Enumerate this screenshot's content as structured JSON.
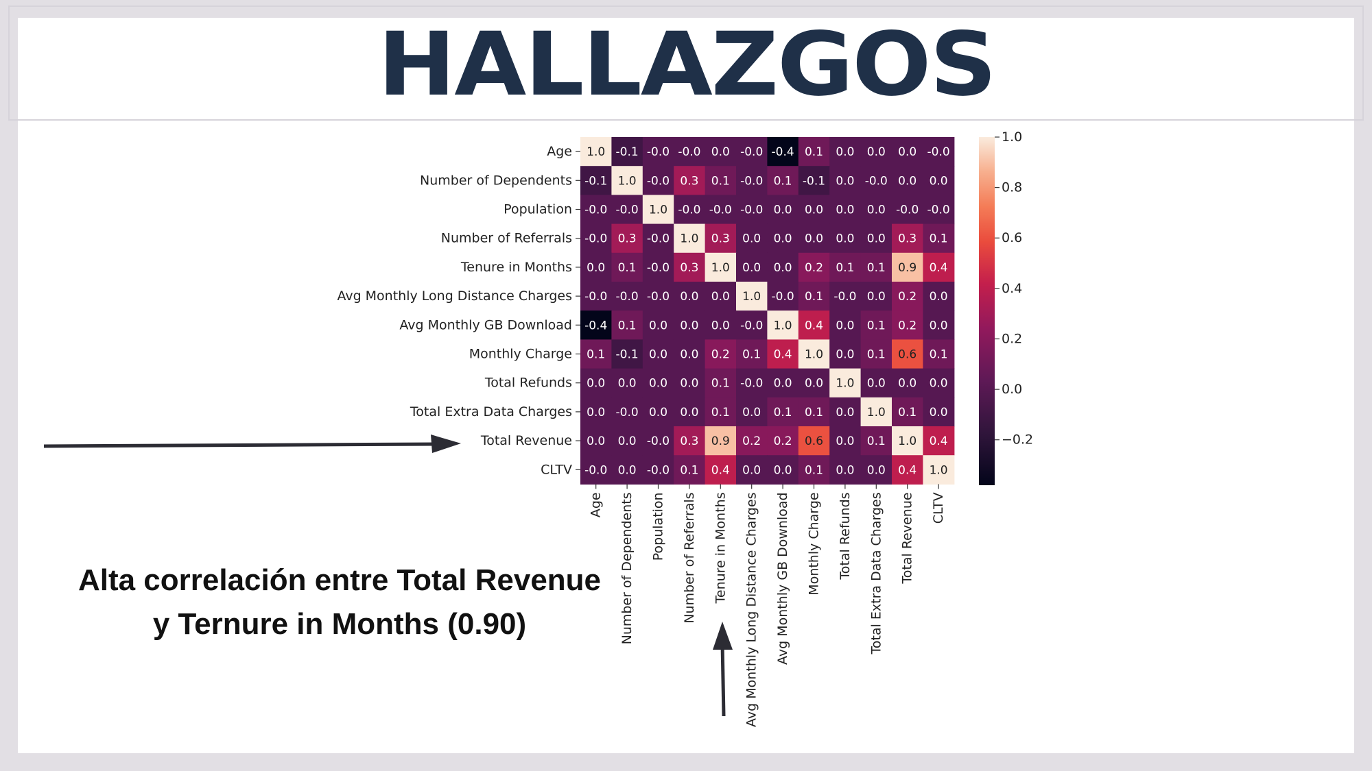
{
  "slide": {
    "title": "HALLAZGOS",
    "caption_line1": "Alta correlación entre Total Revenue",
    "caption_line2": "y Ternure in Months (0.90)"
  },
  "chart_data": {
    "type": "heatmap",
    "title": "",
    "labels": [
      "Age",
      "Number of Dependents",
      "Population",
      "Number of Referrals",
      "Tenure in Months",
      "Avg Monthly Long Distance Charges",
      "Avg Monthly GB Download",
      "Monthly Charge",
      "Total Refunds",
      "Total Extra Data Charges",
      "Total Revenue",
      "CLTV"
    ],
    "matrix_display": [
      [
        "1.0",
        "-0.1",
        "-0.0",
        "-0.0",
        "0.0",
        "-0.0",
        "-0.4",
        "0.1",
        "0.0",
        "0.0",
        "0.0",
        "-0.0"
      ],
      [
        "-0.1",
        "1.0",
        "-0.0",
        "0.3",
        "0.1",
        "-0.0",
        "0.1",
        "-0.1",
        "0.0",
        "-0.0",
        "0.0",
        "0.0"
      ],
      [
        "-0.0",
        "-0.0",
        "1.0",
        "-0.0",
        "-0.0",
        "-0.0",
        "0.0",
        "0.0",
        "0.0",
        "0.0",
        "-0.0",
        "-0.0"
      ],
      [
        "-0.0",
        "0.3",
        "-0.0",
        "1.0",
        "0.3",
        "0.0",
        "0.0",
        "0.0",
        "0.0",
        "0.0",
        "0.3",
        "0.1"
      ],
      [
        "0.0",
        "0.1",
        "-0.0",
        "0.3",
        "1.0",
        "0.0",
        "0.0",
        "0.2",
        "0.1",
        "0.1",
        "0.9",
        "0.4"
      ],
      [
        "-0.0",
        "-0.0",
        "-0.0",
        "0.0",
        "0.0",
        "1.0",
        "-0.0",
        "0.1",
        "-0.0",
        "0.0",
        "0.2",
        "0.0"
      ],
      [
        "-0.4",
        "0.1",
        "0.0",
        "0.0",
        "0.0",
        "-0.0",
        "1.0",
        "0.4",
        "0.0",
        "0.1",
        "0.2",
        "0.0"
      ],
      [
        "0.1",
        "-0.1",
        "0.0",
        "0.0",
        "0.2",
        "0.1",
        "0.4",
        "1.0",
        "0.0",
        "0.1",
        "0.6",
        "0.1"
      ],
      [
        "0.0",
        "0.0",
        "0.0",
        "0.0",
        "0.1",
        "-0.0",
        "0.0",
        "0.0",
        "1.0",
        "0.0",
        "0.0",
        "0.0"
      ],
      [
        "0.0",
        "-0.0",
        "0.0",
        "0.0",
        "0.1",
        "0.0",
        "0.1",
        "0.1",
        "0.0",
        "1.0",
        "0.1",
        "0.0"
      ],
      [
        "0.0",
        "0.0",
        "-0.0",
        "0.3",
        "0.9",
        "0.2",
        "0.2",
        "0.6",
        "0.0",
        "0.1",
        "1.0",
        "0.4"
      ],
      [
        "-0.0",
        "0.0",
        "-0.0",
        "0.1",
        "0.4",
        "0.0",
        "0.0",
        "0.1",
        "0.0",
        "0.0",
        "0.4",
        "1.0"
      ]
    ],
    "colorbar": {
      "range": [
        -0.38,
        1.0
      ],
      "ticks": [
        1.0,
        0.8,
        0.6,
        0.4,
        0.2,
        0.0,
        -0.2
      ],
      "tick_labels": [
        "1.0",
        "0.8",
        "0.6",
        "0.4",
        "0.2",
        "0.0",
        "−0.2"
      ]
    },
    "colormap": "rocket",
    "annotations": [
      {
        "type": "arrow",
        "points_to": "Total Revenue",
        "direction": "right"
      },
      {
        "type": "arrow",
        "points_to": "Tenure in Months",
        "direction": "up"
      }
    ]
  }
}
